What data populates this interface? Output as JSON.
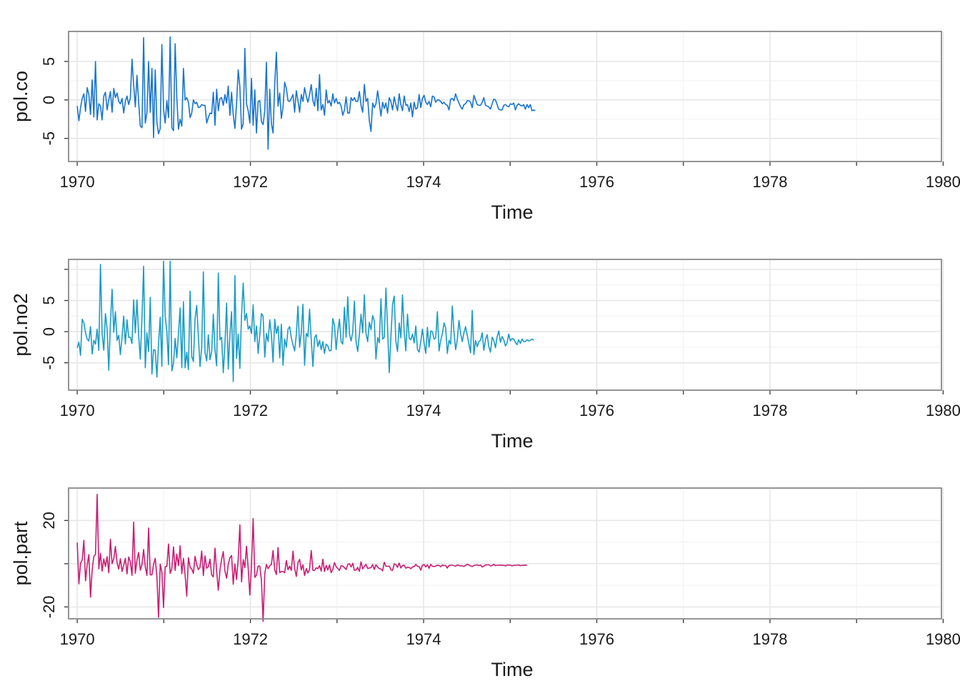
{
  "chart_data": [
    {
      "type": "line",
      "xlabel": "Time",
      "ylabel": "pol.co",
      "color": "#1874cd",
      "x_start": 1970,
      "x_step": 0.019166,
      "xlim": [
        1969.9,
        1979.98
      ],
      "x_ticks": [
        1970,
        1972,
        1974,
        1976,
        1978,
        1980
      ],
      "ylim": [
        -8.0,
        8.9
      ],
      "y_ticks": [
        -5,
        0,
        5
      ],
      "y_tick_labels": [
        "-5",
        "0",
        "5"
      ],
      "values": [
        -0.8,
        -2.7,
        -1.0,
        0.2,
        0.8,
        -1.5,
        1.6,
        0.7,
        -1.9,
        2.6,
        -2.2,
        5.0,
        -2.6,
        -0.5,
        -0.8,
        -2.6,
        0.5,
        1.0,
        -1.3,
        0.0,
        1.1,
        -1.6,
        1.5,
        0.3,
        0.9,
        -0.2,
        -0.5,
        0.2,
        -1.7,
        -0.2,
        0.5,
        -0.6,
        0.2,
        5.3,
        2.0,
        -0.9,
        3.2,
        -0.3,
        -3.4,
        -3.6,
        8.1,
        -3.0,
        -1.7,
        5.0,
        -1.6,
        4.1,
        -4.9,
        3.9,
        -2.9,
        -4.4,
        -3.7,
        7.2,
        -1.2,
        -3.0,
        -0.1,
        -2.3,
        8.2,
        -3.6,
        -4.0,
        7.3,
        0.3,
        -3.8,
        -2.5,
        -3.4,
        4.1,
        0.0,
        0.3,
        -0.3,
        -2.3,
        -1.7,
        0.0,
        -0.5,
        -0.3,
        -1.0,
        -0.9,
        -0.6,
        -0.7,
        -0.7,
        -3.0,
        -2.3,
        -1.7,
        -1.8,
        1.0,
        -3.3,
        1.4,
        -1.4,
        0.2,
        0.3,
        -0.7,
        0.7,
        -0.4,
        1.8,
        -2.0,
        1.0,
        -1.9,
        -3.7,
        -0.5,
        3.9,
        1.7,
        -3.8,
        -3.1,
        6.7,
        -0.5,
        -1.4,
        -3.0,
        2.8,
        -3.3,
        1.3,
        -4.3,
        -0.2,
        -0.1,
        -2.8,
        -3.2,
        -1.4,
        4.9,
        -6.4,
        1.4,
        -3.1,
        -4.3,
        2.1,
        6.2,
        -0.8,
        0.9,
        -2.4,
        -0.9,
        2.3,
        1.5,
        -0.1,
        -0.2,
        0.2,
        0.7,
        -1.6,
        1.2,
        -0.1,
        -1.6,
        0.7,
        -0.2,
        1.6,
        0.5,
        -0.3,
        0.7,
        2.0,
        -0.1,
        -0.8,
        1.5,
        -1.4,
        3.3,
        -1.3,
        -0.6,
        -2.0,
        1.3,
        -0.4,
        -0.1,
        -0.8,
        0.8,
        -0.4,
        0.2,
        -0.5,
        -0.3,
        -0.8,
        -2.0,
        -1.3,
        0.4,
        -1.7,
        -1.7,
        0.3,
        -0.1,
        0.3,
        -0.2,
        -0.2,
        1.1,
        -0.7,
        -1.6,
        2.0,
        -0.2,
        0.2,
        -2.7,
        -4.1,
        -0.4,
        -1.0,
        -0.5,
        1.2,
        -0.4,
        -2.1,
        -0.3,
        -1.1,
        -0.4,
        -1.7,
        0.3,
        -0.2,
        -1.3,
        0.4,
        -0.6,
        -1.4,
        0.8,
        -0.6,
        -1.4,
        0.5,
        -0.7,
        -0.6,
        -1.5,
        -0.4,
        -2.2,
        -0.3,
        -1.2,
        -1.0,
        0.7,
        -1.0,
        0.2,
        0.6,
        -0.3,
        -0.6,
        -0.2,
        -0.9,
        0.5,
        0.4,
        -0.3,
        0.0,
        0.0,
        -0.2,
        -0.5,
        -0.3,
        -0.6,
        -0.7,
        -1.3,
        0.1,
        0.2,
        -0.1,
        0.8,
        0.1,
        -0.4,
        -0.9,
        -1.2,
        -0.6,
        -0.5,
        -0.1,
        -0.1,
        -0.3,
        -1.0,
        0.6,
        0.0,
        -0.6,
        -0.7,
        -0.7,
        -0.3,
        0.3,
        -0.7,
        -0.8,
        -0.9,
        -1.2,
        -0.5,
        0.1,
        0.0,
        -0.6,
        -1.2,
        -1.3,
        -1.3,
        -0.7,
        -0.6,
        -0.8,
        -0.9,
        -0.5,
        -0.6,
        -0.4,
        -1.3,
        -0.7,
        -0.5,
        -0.7,
        -0.8,
        -0.6,
        -1.2,
        -0.6,
        -1.0,
        -0.6,
        -1.4,
        -1.3,
        -1.4
      ]
    },
    {
      "type": "line",
      "xlabel": "Time",
      "ylabel": "pol.no2",
      "color": "#1a9bc5",
      "x_start": 1970,
      "x_step": 0.019166,
      "xlim": [
        1969.9,
        1979.98
      ],
      "x_ticks": [
        1970,
        1972,
        1974,
        1976,
        1978,
        1980
      ],
      "ylim": [
        -9.4,
        11.6
      ],
      "y_ticks": [
        -5,
        0,
        5,
        10
      ],
      "y_tick_labels": [
        "-5",
        "0",
        "5",
        ""
      ],
      "values": [
        -2.6,
        -1.7,
        -3.8,
        2.0,
        1.4,
        -0.2,
        -1.2,
        -1.5,
        0.8,
        -3.6,
        -1.4,
        -2.0,
        0.4,
        -3.0,
        10.8,
        -0.4,
        -3.0,
        2.9,
        0.5,
        -6.2,
        1.4,
        6.8,
        -0.1,
        3.2,
        -1.4,
        -0.6,
        -3.7,
        -0.9,
        2.5,
        -2.0,
        1.9,
        -0.9,
        -0.9,
        -1.9,
        5.1,
        -0.2,
        5.1,
        -0.6,
        -4.4,
        2.1,
        10.5,
        -5.8,
        -0.2,
        -3.2,
        5.5,
        -6.8,
        -2.9,
        -3.0,
        -7.3,
        -1.9,
        2.3,
        -5.6,
        11.3,
        2.5,
        0.0,
        -5.3,
        11.3,
        -6.3,
        -5.1,
        -1.1,
        -4.2,
        -0.3,
        3.8,
        -5.8,
        4.8,
        -5.8,
        -3.3,
        -6.1,
        6.5,
        -4.0,
        -4.8,
        2.1,
        4.2,
        -0.8,
        -5.6,
        -2.5,
        9.6,
        -3.4,
        -4.7,
        -0.5,
        -4.5,
        -3.2,
        2.8,
        -2.9,
        -5.5,
        9.4,
        -1.3,
        -0.9,
        -6.6,
        -2.1,
        4.6,
        -6.0,
        -0.6,
        3.2,
        -8.0,
        9.0,
        -4.3,
        -0.4,
        -5.9,
        2.6,
        7.8,
        1.8,
        2.9,
        0.4,
        0.9,
        -0.3,
        4.3,
        -1.6,
        0.9,
        -3.5,
        -0.5,
        2.9,
        2.5,
        -4.1,
        -0.3,
        -1.6,
        1.9,
        -0.5,
        -4.9,
        2.0,
        -0.3,
        0.9,
        -4.2,
        1.2,
        -5.4,
        -1.2,
        -2.5,
        0.4,
        0.8,
        -1.0,
        -2.1,
        -3.1,
        -0.5,
        4.1,
        -2.5,
        -0.2,
        4.4,
        -5.4,
        -0.3,
        -0.8,
        3.6,
        -1.3,
        -5.6,
        -1.0,
        -0.5,
        -2.4,
        -1.4,
        -2.9,
        -1.6,
        -3.5,
        -2.0,
        -2.3,
        -3.1,
        -3.0,
        2.1,
        1.0,
        -2.9,
        0.0,
        2.0,
        -1.6,
        -2.0,
        3.9,
        -0.9,
        5.6,
        -0.3,
        -1.5,
        -0.1,
        4.9,
        -1.6,
        -3.2,
        -0.5,
        2.8,
        -0.2,
        5.9,
        -0.3,
        -1.6,
        1.5,
        0.3,
        2.6,
        1.7,
        -4.4,
        -1.0,
        -1.8,
        5.3,
        -1.2,
        -0.9,
        7.0,
        0.5,
        -6.6,
        -0.9,
        4.4,
        5.7,
        -1.6,
        -3.2,
        1.4,
        -1.0,
        5.9,
        -0.1,
        -3.1,
        2.8,
        -1.0,
        -1.3,
        -0.4,
        -1.8,
        0.9,
        -2.9,
        -3.3,
        -1.6,
        0.4,
        -1.8,
        -3.5,
        0.7,
        -2.5,
        0.1,
        0.0,
        -1.2,
        -1.0,
        3.2,
        -3.1,
        -1.4,
        -0.4,
        1.4,
        0.6,
        -3.5,
        -1.4,
        -2.0,
        4.1,
        -0.1,
        -2.9,
        -1.3,
        1.8,
        -0.3,
        -1.6,
        -0.2,
        0.8,
        -0.6,
        -2.0,
        -3.4,
        3.4,
        -3.7,
        -1.4,
        -2.4,
        -1.6,
        -1.4,
        -0.2,
        -3.0,
        -1.3,
        -0.5,
        -2.4,
        -3.3,
        -0.9,
        -1.4,
        -2.6,
        -0.8,
        0.1,
        -1.7,
        -0.8,
        -1.3,
        -2.3,
        -1.8,
        -0.4,
        -1.5,
        -1.1,
        -1.2,
        -1.7,
        -2.1,
        -1.3,
        -1.9,
        -1.2,
        -1.6,
        -1.6,
        -1.3,
        -1.5,
        -1.4,
        -1.2,
        -1.4
      ]
    },
    {
      "type": "line",
      "xlabel": "Time",
      "ylabel": "pol.part",
      "color": "#c81d73",
      "x_start": 1970,
      "x_step": 0.019166,
      "xlim": [
        1969.9,
        1979.98
      ],
      "x_ticks": [
        1970,
        1972,
        1974,
        1976,
        1978,
        1980
      ],
      "ylim": [
        -25.5,
        35.0
      ],
      "y_ticks": [
        -20,
        0,
        20
      ],
      "y_tick_labels": [
        "-20",
        "",
        "20"
      ],
      "values": [
        9.8,
        -9.3,
        0.3,
        1.7,
        10.8,
        -7.9,
        -0.5,
        4.2,
        -15.5,
        -2.8,
        3.4,
        4.3,
        32.1,
        -2.4,
        4.8,
        -3.4,
        2.2,
        -1.3,
        3.3,
        -4.2,
        11.3,
        0.0,
        2.2,
        8.0,
        0.4,
        -2.5,
        2.3,
        -3.6,
        -0.7,
        2.5,
        -4.7,
        3.1,
        0.9,
        -5.4,
        19.3,
        -4.4,
        1.7,
        5.2,
        -3.0,
        -0.5,
        6.6,
        -1.4,
        -5.4,
        16.5,
        -5.1,
        -5.2,
        -0.3,
        2.5,
        -6.0,
        -24.8,
        -0.2,
        -3.9,
        -20.3,
        -1.4,
        -1.3,
        9.1,
        -4.5,
        -2.3,
        7.8,
        -3.1,
        4.5,
        -0.8,
        8.3,
        -4.6,
        2.5,
        -5.3,
        -15.0,
        2.8,
        -1.7,
        -2.4,
        -4.5,
        3.4,
        -0.5,
        -2.7,
        -1.6,
        5.9,
        -5.5,
        3.6,
        -2.1,
        -1.4,
        2.1,
        -5.2,
        -6.1,
        7.2,
        -3.4,
        -12.3,
        -3.0,
        2.1,
        5.6,
        -3.4,
        -6.7,
        -0.3,
        2.8,
        3.8,
        -9.5,
        -0.2,
        -7.3,
        2.3,
        18.0,
        -8.4,
        1.9,
        -1.8,
        8.1,
        -1.9,
        -14.5,
        -0.9,
        20.9,
        -6.3,
        -5.3,
        -1.1,
        -1.1,
        -7.7,
        -26.7,
        -4.5,
        -0.4,
        -2.3,
        -1.0,
        -0.3,
        6.1,
        -2.9,
        -5.0,
        7.5,
        -4.1,
        -3.6,
        -3.6,
        -4.2,
        1.5,
        -2.8,
        -1.1,
        -3.1,
        5.8,
        -2.2,
        -5.9,
        0.5,
        2.0,
        -2.9,
        -0.5,
        -5.5,
        -2.2,
        -4.3,
        -2.5,
        6.1,
        -3.1,
        -3.1,
        -1.9,
        -2.3,
        -0.9,
        -3.4,
        2.1,
        -3.6,
        -0.8,
        -2.9,
        -0.6,
        -4.1,
        -2.7,
        0.5,
        -1.4,
        -2.2,
        -3.1,
        -0.9,
        -1.1,
        -1.8,
        -2.7,
        -0.4,
        0.0,
        -1.5,
        0.2,
        -3.1,
        -2.9,
        -1.7,
        -3.5,
        0.9,
        -2.4,
        -1.2,
        -0.3,
        -2.2,
        -2.0,
        -1.8,
        -0.4,
        -2.6,
        -0.5,
        -1.5,
        -2.3,
        -2.4,
        -3.3,
        0.7,
        -1.2,
        -1.2,
        -1.1,
        -2.8,
        -3.1,
        -0.1,
        -0.4,
        -1.7,
        0.3,
        -2.0,
        -0.8,
        -0.7,
        -2.1,
        -1.6,
        -1.7,
        -2.3,
        -1.5,
        -1.4,
        -0.3,
        -1.2,
        -1.3,
        -3.0,
        -0.7,
        -0.4,
        -1.5,
        -0.5,
        -2.1,
        -0.3,
        -1.2,
        -1.3,
        -1.1,
        -0.7,
        -0.8,
        -1.4,
        -0.6,
        -0.9,
        -0.8,
        -2.0,
        -0.8,
        -0.7,
        -0.7,
        -0.9,
        -1.1,
        -0.6,
        -0.8,
        -1.0,
        -0.9,
        -1.3,
        -0.7,
        -0.3,
        -0.6,
        -1.0,
        -1.3,
        -0.8,
        -0.7,
        -0.5,
        -0.9,
        -0.6,
        -1.5,
        -1.1,
        -0.6,
        -0.5,
        -0.5,
        -1.0,
        -0.8,
        -0.3,
        -0.9,
        -0.7,
        -0.7,
        -0.6,
        -0.8,
        -0.7,
        -1.0,
        -0.6,
        -0.6,
        -0.7,
        -1.0,
        -0.8,
        -0.7,
        -0.7,
        -0.6,
        -0.9,
        -0.7,
        -0.8,
        -0.6,
        -0.7
      ]
    }
  ]
}
